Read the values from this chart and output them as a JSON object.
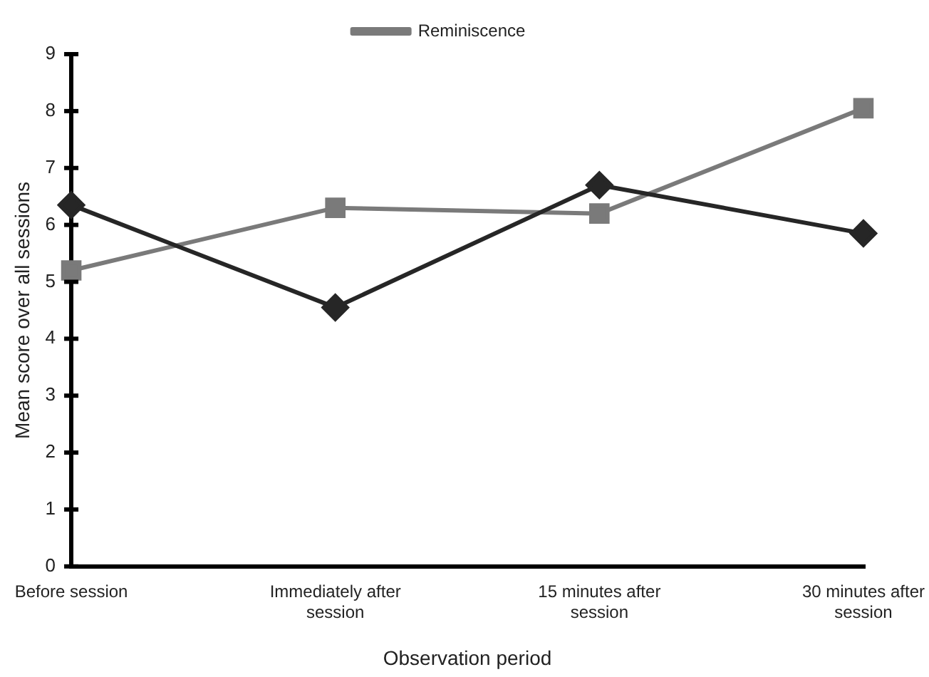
{
  "chart_data": {
    "type": "line",
    "xlabel": "Observation period",
    "ylabel": "Mean score over all sessions",
    "categories": [
      "Before session",
      "Immediately after session",
      "15 minutes after session",
      "30 minutes after session"
    ],
    "series": [
      {
        "color": "#262626",
        "marker": "diamond",
        "values": [
          6.35,
          4.55,
          6.7,
          5.85
        ]
      },
      {
        "name": "Reminiscence",
        "color": "#7a7a7a",
        "marker": "square",
        "values": [
          5.2,
          6.3,
          6.2,
          8.05
        ]
      }
    ],
    "ylim": [
      0,
      9
    ],
    "yticks": [
      0,
      1,
      2,
      3,
      4,
      5,
      6,
      7,
      8,
      9
    ],
    "grid": false,
    "legend": "top"
  }
}
